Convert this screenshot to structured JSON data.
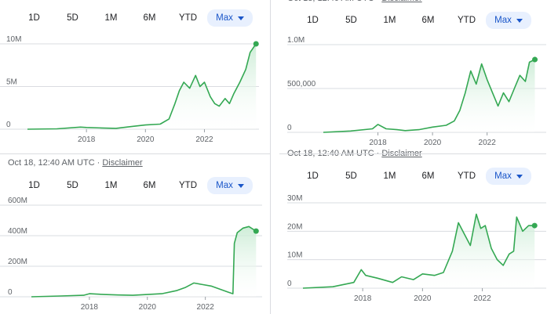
{
  "ranges": [
    "1D",
    "5D",
    "1M",
    "6M",
    "YTD"
  ],
  "selected_range": "Max",
  "caption": {
    "time": "Oct 18, 12:40 AM UTC",
    "sep": "·",
    "link": "Disclaimer"
  },
  "colors": {
    "line": "#34a853",
    "fill_top": "#c8ebd3",
    "grid": "#dadce0",
    "selected_bg": "#e8f0fe",
    "selected_text": "#1a56c9"
  },
  "chart_data": [
    {
      "type": "area",
      "ylim": [
        0,
        11000000
      ],
      "yticks": [
        0,
        5000000,
        10000000
      ],
      "ytick_labels": [
        "0",
        "5M",
        "10M"
      ],
      "xlim": [
        2016.0,
        2023.85
      ],
      "xticks": [
        2018,
        2020,
        2022
      ],
      "xtick_labels": [
        "2018",
        "2020",
        "2022"
      ],
      "x": [
        2016.0,
        2017.0,
        2017.8,
        2018.0,
        2018.5,
        2019.0,
        2019.5,
        2020.0,
        2020.5,
        2020.8,
        2021.0,
        2021.15,
        2021.3,
        2021.5,
        2021.7,
        2021.85,
        2022.0,
        2022.2,
        2022.35,
        2022.5,
        2022.7,
        2022.85,
        2023.0,
        2023.2,
        2023.4,
        2023.55,
        2023.75
      ],
      "y": [
        0,
        50000,
        250000,
        200000,
        150000,
        100000,
        300000,
        500000,
        600000,
        1200000,
        3000000,
        4500000,
        5500000,
        4800000,
        6300000,
        5000000,
        5500000,
        3800000,
        3000000,
        2700000,
        3600000,
        3000000,
        4200000,
        5500000,
        7000000,
        9000000,
        10000000
      ]
    },
    {
      "type": "area",
      "ylim": [
        0,
        1150000
      ],
      "yticks": [
        0,
        500000,
        1000000
      ],
      "ytick_labels": [
        "0",
        "500,000",
        "1.0M"
      ],
      "xlim": [
        2016.0,
        2023.85
      ],
      "xticks": [
        2018,
        2020,
        2022
      ],
      "xtick_labels": [
        "2018",
        "2020",
        "2022"
      ],
      "x": [
        2016.0,
        2017.0,
        2017.8,
        2018.0,
        2018.3,
        2018.7,
        2019.0,
        2019.5,
        2020.0,
        2020.5,
        2020.8,
        2021.0,
        2021.2,
        2021.4,
        2021.6,
        2021.8,
        2022.0,
        2022.2,
        2022.4,
        2022.6,
        2022.8,
        2023.0,
        2023.2,
        2023.4,
        2023.55,
        2023.75
      ],
      "y": [
        0,
        15000,
        40000,
        90000,
        40000,
        30000,
        20000,
        30000,
        60000,
        80000,
        130000,
        250000,
        450000,
        700000,
        550000,
        780000,
        600000,
        450000,
        300000,
        450000,
        350000,
        500000,
        650000,
        580000,
        800000,
        830000
      ]
    },
    {
      "type": "area",
      "ylim": [
        0,
        680000000
      ],
      "yticks": [
        0,
        200000000,
        400000000,
        600000000
      ],
      "ytick_labels": [
        "0",
        "200M",
        "400M",
        "600M"
      ],
      "xlim": [
        2016.0,
        2023.85
      ],
      "xticks": [
        2018,
        2020,
        2022
      ],
      "xtick_labels": [
        "2018",
        "2020",
        "2022"
      ],
      "x": [
        2016.0,
        2017.0,
        2017.8,
        2018.0,
        2018.5,
        2019.0,
        2019.5,
        2020.0,
        2020.5,
        2021.0,
        2021.3,
        2021.6,
        2021.9,
        2022.2,
        2022.5,
        2022.8,
        2022.95,
        2023.0,
        2023.1,
        2023.3,
        2023.5,
        2023.75
      ],
      "y": [
        0,
        5000000,
        10000000,
        20000000,
        15000000,
        12000000,
        10000000,
        15000000,
        20000000,
        40000000,
        60000000,
        90000000,
        80000000,
        70000000,
        50000000,
        30000000,
        20000000,
        350000000,
        420000000,
        450000000,
        460000000,
        430000000
      ]
    },
    {
      "type": "area",
      "ylim": [
        0,
        31000000
      ],
      "yticks": [
        0,
        10000000,
        20000000,
        30000000
      ],
      "ytick_labels": [
        "0",
        "10M",
        "20M",
        "30M"
      ],
      "xlim": [
        2016.0,
        2023.85
      ],
      "xticks": [
        2018,
        2020,
        2022
      ],
      "xtick_labels": [
        "2018",
        "2020",
        "2022"
      ],
      "x": [
        2016.0,
        2017.0,
        2017.7,
        2017.95,
        2018.1,
        2018.5,
        2019.0,
        2019.3,
        2019.7,
        2020.0,
        2020.4,
        2020.7,
        2021.0,
        2021.2,
        2021.4,
        2021.6,
        2021.8,
        2021.95,
        2022.1,
        2022.3,
        2022.5,
        2022.7,
        2022.9,
        2023.05,
        2023.15,
        2023.35,
        2023.55,
        2023.75
      ],
      "y": [
        0,
        500000,
        2000000,
        6500000,
        4500000,
        3500000,
        2000000,
        4000000,
        3000000,
        5000000,
        4500000,
        5500000,
        13000000,
        23000000,
        19000000,
        15000000,
        26000000,
        21000000,
        22000000,
        14000000,
        10000000,
        8000000,
        12000000,
        13000000,
        25000000,
        20000000,
        22000000,
        22000000
      ]
    }
  ]
}
